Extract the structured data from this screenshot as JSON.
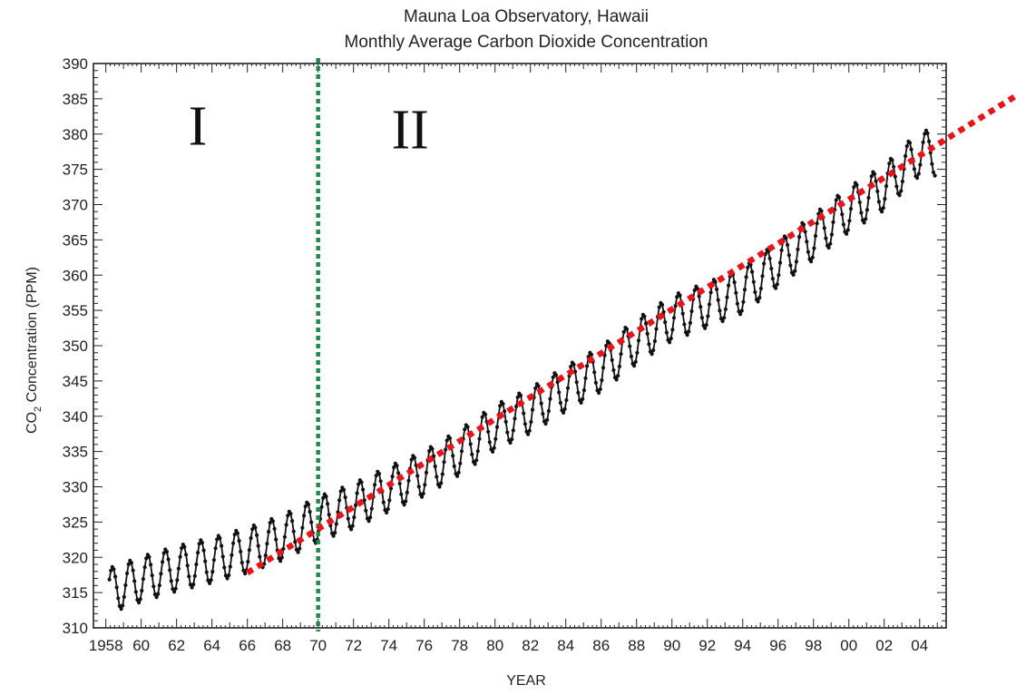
{
  "chart_data": {
    "type": "line",
    "title": "Mauna Loa Observatory, Hawaii",
    "subtitle": "Monthly Average Carbon Dioxide Concentration",
    "xlabel": "YEAR",
    "ylabel": "CO2 Concentration (PPM)",
    "xlim": [
      1957.3,
      2005.5
    ],
    "ylim": [
      310,
      390
    ],
    "grid": false,
    "x_ticks": [
      {
        "value": 1958,
        "label": "1958"
      },
      {
        "value": 1960,
        "label": "60"
      },
      {
        "value": 1962,
        "label": "62"
      },
      {
        "value": 1964,
        "label": "64"
      },
      {
        "value": 1966,
        "label": "66"
      },
      {
        "value": 1968,
        "label": "68"
      },
      {
        "value": 1970,
        "label": "70"
      },
      {
        "value": 1972,
        "label": "72"
      },
      {
        "value": 1974,
        "label": "74"
      },
      {
        "value": 1976,
        "label": "76"
      },
      {
        "value": 1978,
        "label": "78"
      },
      {
        "value": 1980,
        "label": "80"
      },
      {
        "value": 1982,
        "label": "82"
      },
      {
        "value": 1984,
        "label": "84"
      },
      {
        "value": 1986,
        "label": "86"
      },
      {
        "value": 1988,
        "label": "88"
      },
      {
        "value": 1990,
        "label": "90"
      },
      {
        "value": 1992,
        "label": "92"
      },
      {
        "value": 1994,
        "label": "94"
      },
      {
        "value": 1996,
        "label": "96"
      },
      {
        "value": 1998,
        "label": "98"
      },
      {
        "value": 2000,
        "label": "00"
      },
      {
        "value": 2002,
        "label": "02"
      },
      {
        "value": 2004,
        "label": "04"
      }
    ],
    "y_ticks": [
      310,
      315,
      320,
      325,
      330,
      335,
      340,
      345,
      350,
      355,
      360,
      365,
      370,
      375,
      380,
      385,
      390
    ],
    "series": [
      {
        "color": "#111111",
        "trend_points": [
          [
            1958.2,
            315.3
          ],
          [
            1960,
            316.9
          ],
          [
            1962,
            318.4
          ],
          [
            1964,
            319.6
          ],
          [
            1966,
            321.0
          ],
          [
            1968,
            322.8
          ],
          [
            1970,
            325.4
          ],
          [
            1972,
            327.3
          ],
          [
            1974,
            329.7
          ],
          [
            1976,
            331.9
          ],
          [
            1978,
            334.9
          ],
          [
            1980,
            338.4
          ],
          [
            1982,
            340.8
          ],
          [
            1984,
            343.9
          ],
          [
            1986,
            346.7
          ],
          [
            1988,
            350.6
          ],
          [
            1990,
            353.9
          ],
          [
            1992,
            355.8
          ],
          [
            1994,
            357.8
          ],
          [
            1996,
            361.6
          ],
          [
            1998,
            365.4
          ],
          [
            2000,
            369.3
          ],
          [
            2002,
            372.4
          ],
          [
            2004,
            377.3
          ]
        ],
        "seasonal_amplitude": 3.2,
        "start": 1958.2,
        "end": 2004.9
      }
    ],
    "annotations": {
      "region_labels": [
        {
          "text": "I",
          "x": 1963.2,
          "y": 378.5
        },
        {
          "text": "II",
          "x": 1975.2,
          "y": 378.0
        }
      ],
      "divider": {
        "x": 1970.0,
        "color": "#1f8a4c",
        "style": "dotted"
      },
      "trend_line": {
        "from": [
          1966,
          317.8
        ],
        "to": [
          2009.5,
          385.5
        ],
        "color": "#e8141c",
        "style": "dotted"
      }
    }
  }
}
